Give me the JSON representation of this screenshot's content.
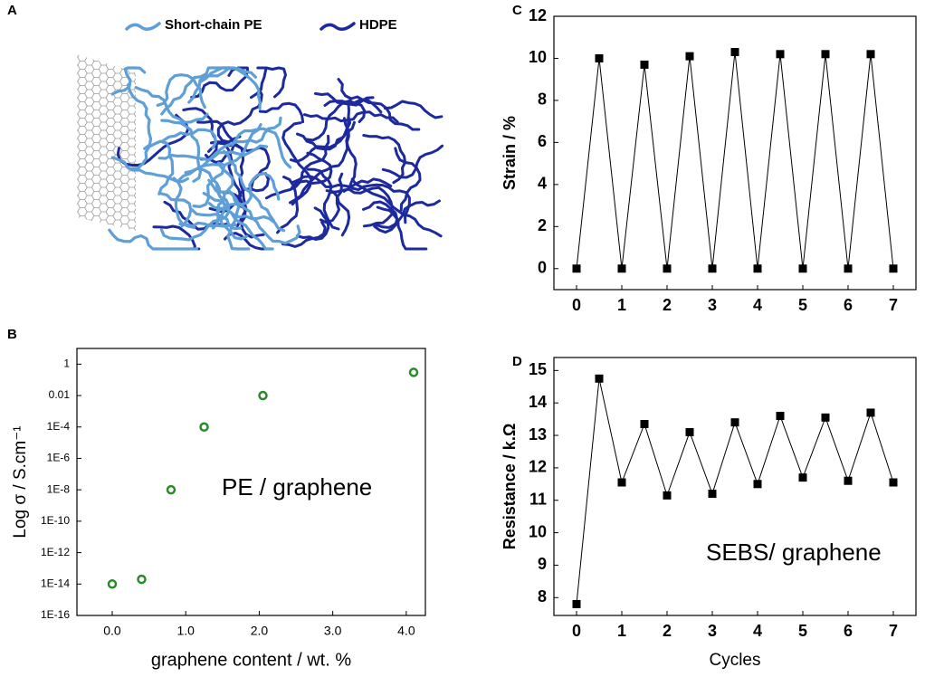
{
  "panel_labels": [
    "A",
    "B",
    "C",
    "D"
  ],
  "diagram": {
    "legend": [
      {
        "name": "Short-chain PE",
        "color": "#5f9fd8"
      },
      {
        "name": "HDPE",
        "color": "#1c2a9e"
      }
    ]
  },
  "chart_data": [
    {
      "type": "scatter",
      "x": [
        0,
        0.4,
        0.8,
        1.25,
        2.05,
        4.1
      ],
      "series": [
        {
          "name": null,
          "color": "#2a8a2a",
          "values": [
            1e-14,
            2e-14,
            1e-08,
            0.0001,
            0.01,
            0.3
          ]
        }
      ],
      "xlim": [
        -0.48,
        4.26
      ],
      "ylim": [
        1e-16,
        10
      ],
      "log_y": true,
      "xticks": [
        {
          "value": 0,
          "label": "0.0"
        },
        {
          "value": 1,
          "label": "1.0"
        },
        {
          "value": 2,
          "label": "2.0"
        },
        {
          "value": 3,
          "label": "3.0"
        },
        {
          "value": 4,
          "label": "4.0"
        }
      ],
      "yticks": [
        1,
        0.01,
        {
          "value": 0.0001,
          "label": "1E-4"
        },
        {
          "value": 1e-06,
          "label": "1E-6"
        },
        {
          "value": 1e-08,
          "label": "1E-8"
        },
        {
          "value": 1e-10,
          "label": "1E-10"
        },
        {
          "value": 1e-12,
          "label": "1E-12"
        },
        {
          "value": 1e-14,
          "label": "1E-14"
        },
        {
          "value": 1e-16,
          "label": "1E-16"
        }
      ],
      "xlabel": "graphene content / wt. %",
      "ylabel": "Log σ / S.cm⁻¹",
      "annotation": {
        "text": "PE / graphene",
        "color": "#2a8a2a"
      }
    },
    {
      "type": "line",
      "x": [
        0,
        0.5,
        1,
        1.5,
        2,
        2.5,
        3,
        3.5,
        4,
        4.5,
        5,
        5.5,
        6,
        6.5,
        7
      ],
      "series": [
        {
          "name": null,
          "color": "#000000",
          "values": [
            0,
            10,
            0,
            9.7,
            0,
            10.1,
            0,
            10.3,
            0,
            10.2,
            0,
            10.2,
            0,
            10.2,
            0
          ]
        }
      ],
      "xlim": [
        -0.5,
        7.5
      ],
      "ylim": [
        -1,
        12
      ],
      "xticks": [
        0,
        1,
        2,
        3,
        4,
        5,
        6,
        7
      ],
      "yticks": [
        0,
        2,
        4,
        6,
        8,
        10,
        12
      ],
      "ylabel": "Strain / %"
    },
    {
      "type": "line",
      "x": [
        0,
        0.5,
        1,
        1.5,
        2,
        2.5,
        3,
        3.5,
        4,
        4.5,
        5,
        5.5,
        6,
        6.5,
        7
      ],
      "series": [
        {
          "name": null,
          "color": "#000000",
          "values": [
            7.8,
            14.75,
            11.55,
            13.35,
            11.15,
            13.1,
            11.2,
            13.4,
            11.5,
            13.6,
            11.7,
            13.55,
            11.6,
            13.7,
            11.55
          ]
        }
      ],
      "xlim": [
        -0.5,
        7.5
      ],
      "ylim": [
        7.45,
        15.4
      ],
      "xticks": [
        0,
        1,
        2,
        3,
        4,
        5,
        6,
        7
      ],
      "yticks": [
        8,
        9,
        10,
        11,
        12,
        13,
        14,
        15
      ],
      "xlabel": "Cycles",
      "ylabel": "Resistance / k.Ω",
      "annotation": {
        "text": "SEBS/ graphene",
        "color": "#e8141c"
      }
    }
  ]
}
